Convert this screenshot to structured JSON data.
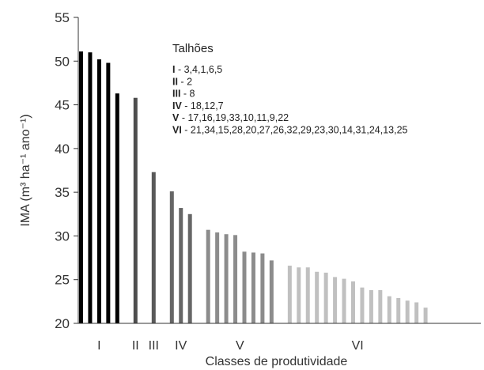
{
  "chart_data": {
    "type": "bar",
    "xlabel": "Classes de produtividade",
    "ylabel": "IMA (m³ ha⁻¹ ano⁻¹)",
    "ylim": [
      20,
      55
    ],
    "yticks": [
      "20",
      "25",
      "30",
      "35",
      "40",
      "45",
      "50",
      "55"
    ],
    "grid": false,
    "legend_title": "Talhões",
    "legend": [
      {
        "key": "I",
        "sep": " - ",
        "text": "3,4,1,6,5"
      },
      {
        "key": "II",
        "sep": " - ",
        "text": "2"
      },
      {
        "key": "III",
        "sep": " - ",
        "text": "8"
      },
      {
        "key": "IV",
        "sep": " - ",
        "text": "18,12,7"
      },
      {
        "key": "V",
        "sep": " - ",
        "text": "17,16,19,33,10,11,9,22"
      },
      {
        "key": "VI",
        "sep": " - ",
        "text": "21,34,15,28,20,27,26,32,29,23,30,14,31,24,13,25"
      }
    ],
    "colors": {
      "I": "#000000",
      "II": "#4d4d4d",
      "III": "#595959",
      "IV": "#666666",
      "V": "#8c8c8c",
      "VI": "#c0c0c0"
    },
    "groups": [
      {
        "label": "I",
        "values": [
          51.1,
          51.0,
          50.2,
          49.8,
          46.3
        ]
      },
      {
        "label": "II",
        "values": [
          45.8
        ]
      },
      {
        "label": "III",
        "values": [
          37.3
        ]
      },
      {
        "label": "IV",
        "values": [
          35.1,
          33.2,
          32.5
        ]
      },
      {
        "label": "V",
        "values": [
          30.7,
          30.4,
          30.2,
          30.1,
          28.2,
          28.1,
          28.0,
          27.2
        ]
      },
      {
        "label": "VI",
        "values": [
          26.6,
          26.4,
          26.4,
          25.9,
          25.8,
          25.3,
          25.1,
          24.8,
          24.1,
          23.8,
          23.8,
          23.1,
          22.9,
          22.6,
          22.4,
          21.8
        ]
      }
    ]
  }
}
